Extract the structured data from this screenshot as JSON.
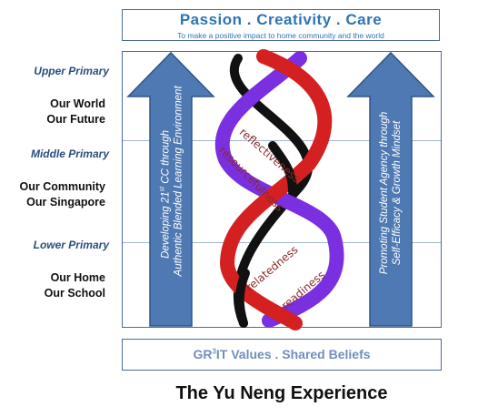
{
  "header": {
    "title": "Passion . Creativity . Care",
    "subtitle": "To make a positive impact to home community and the world"
  },
  "levels": [
    {
      "label": "Upper Primary",
      "scope_line1": "Our World",
      "scope_line2": "Our Future"
    },
    {
      "label": "Middle Primary",
      "scope_line1": "Our Community",
      "scope_line2": "Our Singapore"
    },
    {
      "label": "Lower Primary",
      "scope_line1": "Our Home",
      "scope_line2": "Our School"
    }
  ],
  "left_arrow": {
    "line1_pre": "Developing 21",
    "line1_sup": "st",
    "line1_post": " CC through",
    "line2": "Authentic Blended Learning Environment"
  },
  "right_arrow": {
    "line1": "Promoting Student Agency through",
    "line2": "Self-Efficacy & Growth Mindset"
  },
  "helix_words": [
    "reflectiveness",
    "resourcefulness",
    "relatedness",
    "readiness"
  ],
  "footer": {
    "values_pre": "GR",
    "values_sup": "3",
    "values_post": "IT Values . Shared Beliefs",
    "title": "The Yu Neng Experience"
  },
  "colors": {
    "arrow_blue": "#4f79b3",
    "strand_red": "#d42020",
    "strand_purple": "#7a2fe0",
    "strand_black": "#111111"
  }
}
